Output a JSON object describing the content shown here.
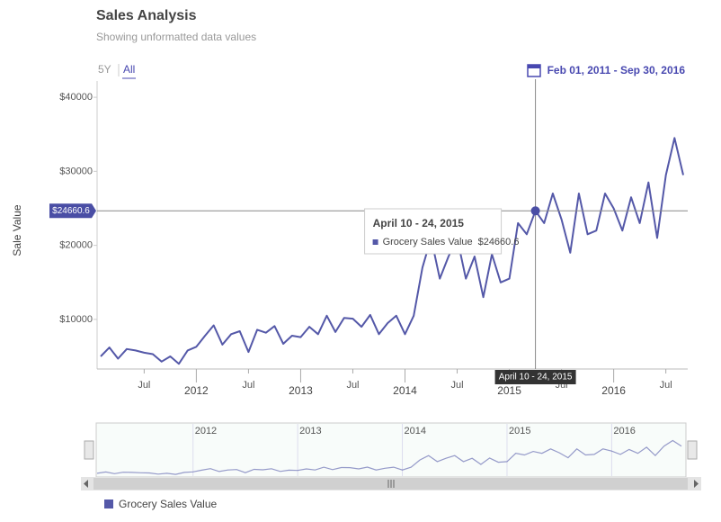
{
  "chart_data": {
    "type": "line",
    "title": "Sales Analysis",
    "subtitle": "Showing unformatted data values",
    "range_buttons": [
      "5Y",
      "All"
    ],
    "date_range": "Feb 01, 2011 - Sep 30, 2016",
    "y_axis_title": "Sale Value",
    "x": [
      "2011-02",
      "2011-03",
      "2011-04",
      "2011-05",
      "2011-06",
      "2011-07",
      "2011-08",
      "2011-09",
      "2011-10",
      "2011-11",
      "2011-12",
      "2012-01",
      "2012-02",
      "2012-03",
      "2012-04",
      "2012-05",
      "2012-06",
      "2012-07",
      "2012-08",
      "2012-09",
      "2012-10",
      "2012-11",
      "2012-12",
      "2013-01",
      "2013-02",
      "2013-03",
      "2013-04",
      "2013-05",
      "2013-06",
      "2013-07",
      "2013-08",
      "2013-09",
      "2013-10",
      "2013-11",
      "2013-12",
      "2014-01",
      "2014-02",
      "2014-03",
      "2014-04",
      "2014-05",
      "2014-06",
      "2014-07",
      "2014-08",
      "2014-09",
      "2014-10",
      "2014-11",
      "2014-12",
      "2015-01",
      "2015-02",
      "2015-03",
      "2015-04",
      "2015-05",
      "2015-06",
      "2015-07",
      "2015-08",
      "2015-09",
      "2015-10",
      "2015-11",
      "2015-12",
      "2016-01",
      "2016-02",
      "2016-03",
      "2016-04",
      "2016-05",
      "2016-06",
      "2016-07",
      "2016-08",
      "2016-09"
    ],
    "series": [
      {
        "name": "Grocery Sales Value",
        "color": "#5458a8",
        "values": [
          5000,
          6200,
          4700,
          6000,
          5800,
          5500,
          5300,
          4300,
          5000,
          4000,
          5800,
          6300,
          7800,
          9200,
          6600,
          8000,
          8400,
          5600,
          8600,
          8200,
          9100,
          6700,
          7800,
          7600,
          9000,
          8000,
          10500,
          8300,
          10200,
          10100,
          9000,
          10600,
          8000,
          9500,
          10500,
          8000,
          10500,
          17000,
          21000,
          15500,
          18500,
          21000,
          15500,
          18500,
          13000,
          18800,
          15000,
          15500,
          23000,
          21500,
          24660.6,
          23000,
          27000,
          23500,
          19000,
          27000,
          21500,
          22000,
          27000,
          25000,
          22000,
          26500,
          23000,
          28500,
          21000,
          29500,
          34500,
          29500
        ]
      }
    ],
    "xlim": [
      "2011-02",
      "2016-09"
    ],
    "xticks": [
      {
        "value": "2011-07",
        "label": "Jul"
      },
      {
        "value": "2012-01",
        "label": "2012"
      },
      {
        "value": "2012-07",
        "label": "Jul"
      },
      {
        "value": "2013-01",
        "label": "2013"
      },
      {
        "value": "2013-07",
        "label": "Jul"
      },
      {
        "value": "2014-01",
        "label": "2014"
      },
      {
        "value": "2014-07",
        "label": "Jul"
      },
      {
        "value": "2015-01",
        "label": "2015"
      },
      {
        "value": "2015-07",
        "label": "Jul"
      },
      {
        "value": "2016-01",
        "label": "2016"
      },
      {
        "value": "2016-07",
        "label": "Jul"
      }
    ],
    "ylim": [
      3300,
      42200
    ],
    "yticks": [
      {
        "value": 10000,
        "label": "$10000"
      },
      {
        "value": 20000,
        "label": "$20000"
      },
      {
        "value": 30000,
        "label": "$30000"
      },
      {
        "value": 40000,
        "label": "$40000"
      }
    ],
    "tooltip": {
      "x": "2015-04",
      "date_label": "April 10 - 24, 2015",
      "value": 24660.6,
      "value_label": "$24660.6"
    }
  }
}
